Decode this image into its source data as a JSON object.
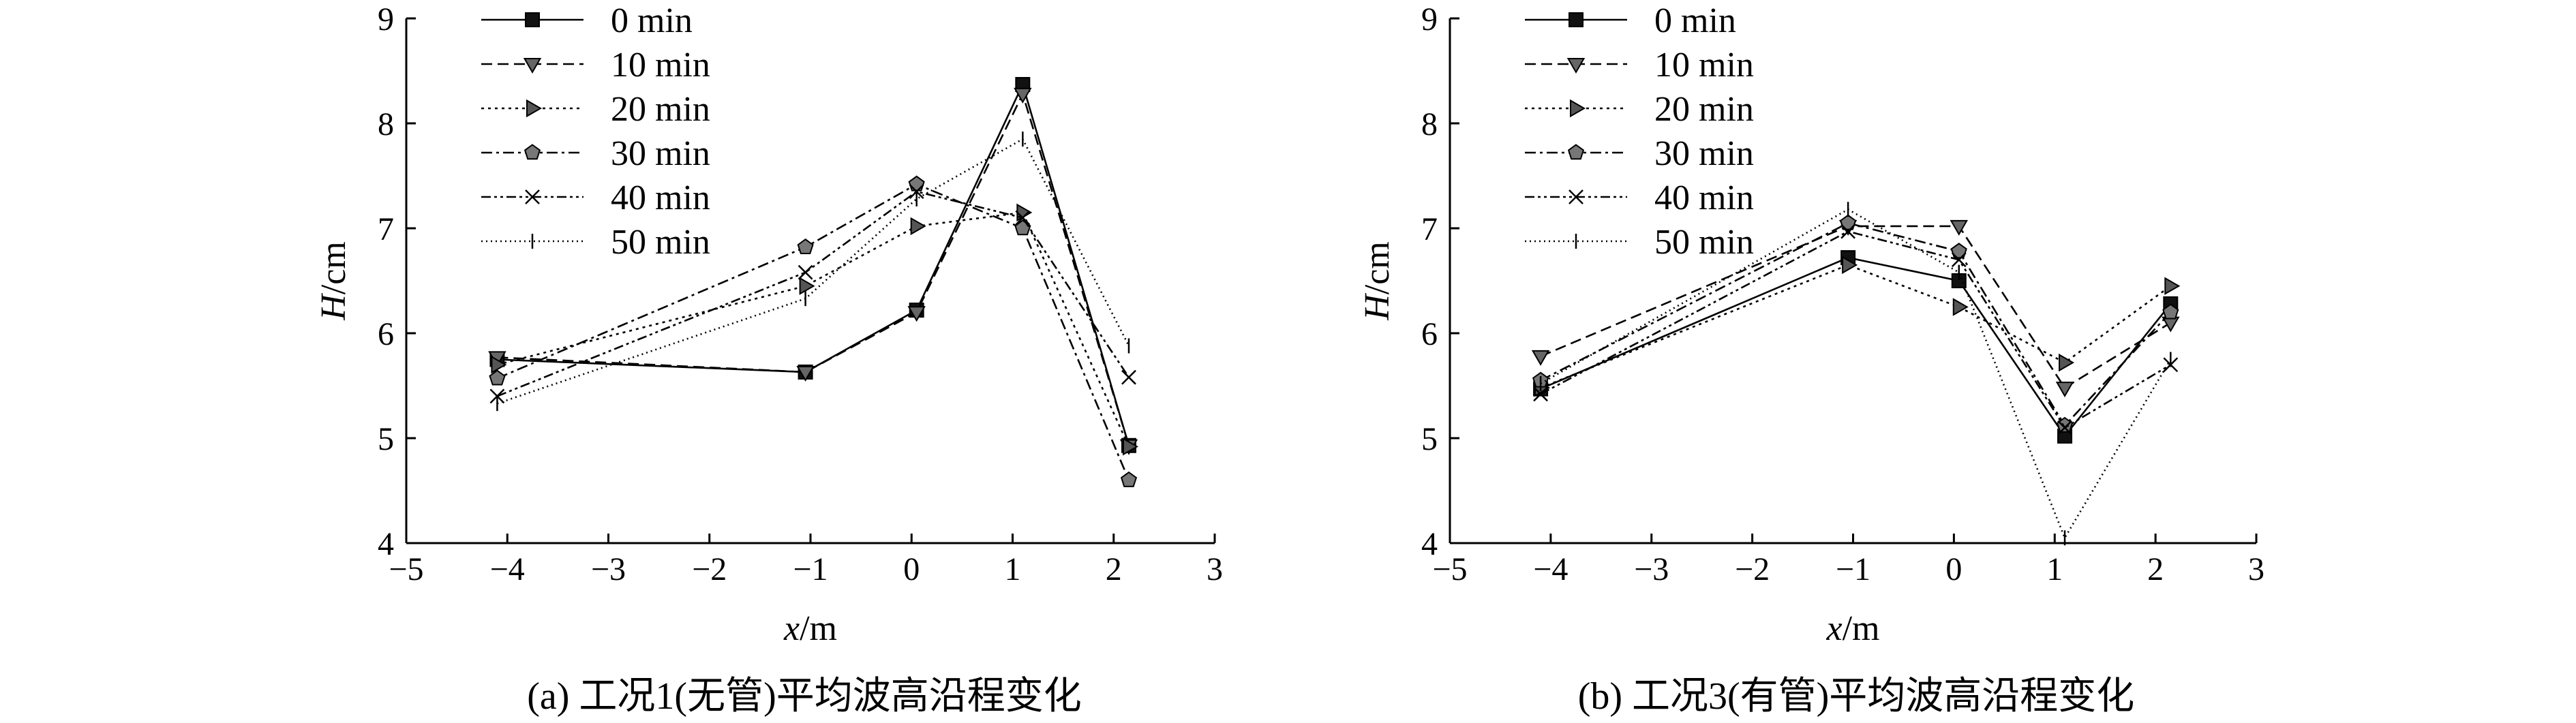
{
  "chart_data": [
    {
      "type": "line",
      "title": "",
      "caption": "(a) 工况1(无管)平均波高沿程变化",
      "xlabel_var": "x",
      "xlabel_unit": "/m",
      "ylabel_var": "H",
      "ylabel_unit": "/cm",
      "xlim": [
        -5,
        3
      ],
      "ylim": [
        4,
        9
      ],
      "xticks": [
        -5,
        -4,
        -3,
        -2,
        -1,
        0,
        1,
        2,
        3
      ],
      "xtick_labels": [
        "−5",
        "−4",
        "−3",
        "−2",
        "−1",
        "0",
        "1",
        "2",
        "3"
      ],
      "yticks": [
        4,
        5,
        6,
        7,
        8,
        9
      ],
      "ytick_labels": [
        "4",
        "5",
        "6",
        "7",
        "8",
        "9"
      ],
      "grid": false,
      "legend_position": "top-left",
      "x": [
        -4.1,
        -1.05,
        0.05,
        1.1,
        2.15
      ],
      "series": [
        {
          "name": "0 min",
          "marker": "square",
          "dash": "solid",
          "values": [
            5.75,
            5.63,
            6.22,
            8.37,
            4.93
          ]
        },
        {
          "name": "10 min",
          "marker": "triangle-down",
          "dash": "dashed",
          "values": [
            5.77,
            5.63,
            6.2,
            8.28,
            4.93
          ]
        },
        {
          "name": "20 min",
          "marker": "triangle-right",
          "dash": "dotted",
          "values": [
            5.7,
            6.45,
            7.02,
            7.15,
            4.92
          ]
        },
        {
          "name": "30 min",
          "marker": "pentagon",
          "dash": "dashdot",
          "values": [
            5.57,
            6.82,
            7.42,
            7.0,
            4.6
          ]
        },
        {
          "name": "40 min",
          "marker": "x",
          "dash": "dashdotdot",
          "values": [
            5.4,
            6.58,
            7.35,
            7.1,
            5.58
          ]
        },
        {
          "name": "50 min",
          "marker": "plus",
          "dash": "fine-dotted",
          "values": [
            5.33,
            6.33,
            7.28,
            7.85,
            5.88
          ]
        }
      ]
    },
    {
      "type": "line",
      "title": "",
      "caption": "(b) 工况3(有管)平均波高沿程变化",
      "xlabel_var": "x",
      "xlabel_unit": "/m",
      "ylabel_var": "H",
      "ylabel_unit": "/cm",
      "xlim": [
        -5,
        3
      ],
      "ylim": [
        4,
        9
      ],
      "xticks": [
        -5,
        -4,
        -3,
        -2,
        -1,
        0,
        1,
        2,
        3
      ],
      "xtick_labels": [
        "−5",
        "−4",
        "−3",
        "−2",
        "−1",
        "0",
        "1",
        "2",
        "3"
      ],
      "yticks": [
        4,
        5,
        6,
        7,
        8,
        9
      ],
      "ytick_labels": [
        "4",
        "5",
        "6",
        "7",
        "8",
        "9"
      ],
      "grid": false,
      "legend_position": "top-left",
      "x": [
        -4.1,
        -1.05,
        0.05,
        1.1,
        2.15
      ],
      "series": [
        {
          "name": "0 min",
          "marker": "square",
          "dash": "solid",
          "values": [
            5.47,
            6.72,
            6.5,
            5.02,
            6.28
          ]
        },
        {
          "name": "10 min",
          "marker": "triangle-down",
          "dash": "dashed",
          "values": [
            5.78,
            7.02,
            7.02,
            5.48,
            6.1
          ]
        },
        {
          "name": "20 min",
          "marker": "triangle-right",
          "dash": "dotted",
          "values": [
            5.48,
            6.65,
            6.25,
            5.72,
            6.45
          ]
        },
        {
          "name": "30 min",
          "marker": "pentagon",
          "dash": "dashdot",
          "values": [
            5.55,
            7.05,
            6.78,
            5.12,
            6.2
          ]
        },
        {
          "name": "40 min",
          "marker": "x",
          "dash": "dashdotdot",
          "values": [
            5.42,
            6.97,
            6.7,
            5.1,
            5.7
          ]
        },
        {
          "name": "50 min",
          "marker": "plus",
          "dash": "fine-dotted",
          "values": [
            5.52,
            7.18,
            6.58,
            4.05,
            5.75
          ]
        }
      ]
    }
  ]
}
